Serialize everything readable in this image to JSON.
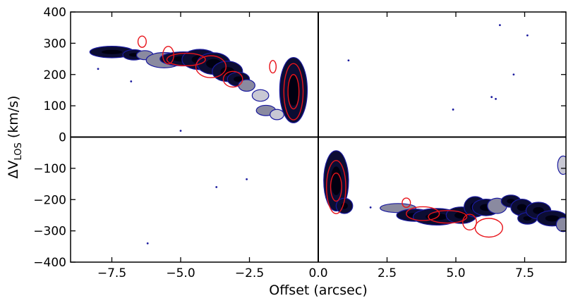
{
  "chart_data": {
    "type": "contour",
    "title": "",
    "xlabel": "Offset (arcsec)",
    "ylabel_main": "ΔV",
    "ylabel_sub": "LOS",
    "ylabel_unit": " (km/s)",
    "xlim": [
      -9.0,
      9.0
    ],
    "ylim": [
      -400,
      400
    ],
    "xticks": [
      -7.5,
      -5.0,
      -2.5,
      0.0,
      2.5,
      5.0,
      7.5
    ],
    "xtick_labels": [
      "−7.5",
      "−5.0",
      "−2.5",
      "0.0",
      "2.5",
      "5.0",
      "7.5"
    ],
    "yticks": [
      -400,
      -300,
      -200,
      -100,
      0,
      100,
      200,
      300,
      400
    ],
    "ytick_labels": [
      "−400",
      "−300",
      "−200",
      "−100",
      "0",
      "100",
      "200",
      "300",
      "400"
    ],
    "reference_lines": {
      "x": 0,
      "y": 0
    },
    "grid": false,
    "legend": "none",
    "colors": {
      "fill_dark": "#0c0d33",
      "fill_mid": "#8a8aa0",
      "fill_light": "#c8c8d4",
      "blue_contour": "#1a1a9e",
      "red_contour": "#e8141b"
    },
    "emission_blobs": [
      {
        "cx": -7.5,
        "cy": 272,
        "rx": 0.75,
        "ry": 14,
        "rot": 0,
        "shade": "dark"
      },
      {
        "cx": -6.7,
        "cy": 263,
        "rx": 0.35,
        "ry": 12,
        "rot": 0,
        "shade": "dark"
      },
      {
        "cx": -6.3,
        "cy": 262,
        "rx": 0.25,
        "ry": 10,
        "rot": 0,
        "shade": "mid"
      },
      {
        "cx": -5.6,
        "cy": 246,
        "rx": 0.6,
        "ry": 20,
        "rot": 0,
        "shade": "mid"
      },
      {
        "cx": -4.9,
        "cy": 250,
        "rx": 0.8,
        "ry": 18,
        "rot": 0,
        "shade": "dark"
      },
      {
        "cx": -4.3,
        "cy": 248,
        "rx": 0.6,
        "ry": 28,
        "rot": 0,
        "shade": "dark"
      },
      {
        "cx": -3.8,
        "cy": 235,
        "rx": 0.55,
        "ry": 30,
        "rot": 0,
        "shade": "dark"
      },
      {
        "cx": -3.3,
        "cy": 210,
        "rx": 0.5,
        "ry": 28,
        "rot": 0,
        "shade": "dark"
      },
      {
        "cx": -2.9,
        "cy": 185,
        "rx": 0.35,
        "ry": 18,
        "rot": 0,
        "shade": "dark"
      },
      {
        "cx": -2.6,
        "cy": 165,
        "rx": 0.25,
        "ry": 14,
        "rot": 0,
        "shade": "mid"
      },
      {
        "cx": -2.1,
        "cy": 133,
        "rx": 0.25,
        "ry": 14,
        "rot": 0,
        "shade": "light"
      },
      {
        "cx": -1.9,
        "cy": 85,
        "rx": 0.3,
        "ry": 12,
        "rot": 0,
        "shade": "mid"
      },
      {
        "cx": -1.5,
        "cy": 72,
        "rx": 0.2,
        "ry": 12,
        "rot": 0,
        "shade": "light"
      },
      {
        "cx": -0.9,
        "cy": 150,
        "rx": 0.45,
        "ry": 100,
        "rot": 0,
        "shade": "dark"
      },
      {
        "cx": 0.65,
        "cy": -140,
        "rx": 0.4,
        "ry": 92,
        "rot": 0,
        "shade": "dark"
      },
      {
        "cx": 0.95,
        "cy": -220,
        "rx": 0.25,
        "ry": 20,
        "rot": 0,
        "shade": "dark"
      },
      {
        "cx": 2.9,
        "cy": -227,
        "rx": 0.6,
        "ry": 10,
        "rot": 0,
        "shade": "mid"
      },
      {
        "cx": 3.5,
        "cy": -250,
        "rx": 0.6,
        "ry": 15,
        "rot": 0,
        "shade": "dark"
      },
      {
        "cx": 4.3,
        "cy": -255,
        "rx": 0.8,
        "ry": 22,
        "rot": 0,
        "shade": "dark"
      },
      {
        "cx": 5.2,
        "cy": -250,
        "rx": 0.5,
        "ry": 22,
        "rot": 0,
        "shade": "dark"
      },
      {
        "cx": 5.7,
        "cy": -223,
        "rx": 0.35,
        "ry": 28,
        "rot": 0,
        "shade": "dark"
      },
      {
        "cx": 6.1,
        "cy": -225,
        "rx": 0.45,
        "ry": 22,
        "rot": 0,
        "shade": "dark"
      },
      {
        "cx": 6.5,
        "cy": -220,
        "rx": 0.3,
        "ry": 20,
        "rot": 0,
        "shade": "mid"
      },
      {
        "cx": 7.0,
        "cy": -205,
        "rx": 0.3,
        "ry": 15,
        "rot": 0,
        "shade": "dark"
      },
      {
        "cx": 7.4,
        "cy": -225,
        "rx": 0.35,
        "ry": 22,
        "rot": 0,
        "shade": "dark"
      },
      {
        "cx": 7.6,
        "cy": -260,
        "rx": 0.3,
        "ry": 14,
        "rot": 0,
        "shade": "dark"
      },
      {
        "cx": 8.0,
        "cy": -235,
        "rx": 0.4,
        "ry": 22,
        "rot": 0,
        "shade": "dark"
      },
      {
        "cx": 8.5,
        "cy": -260,
        "rx": 0.5,
        "ry": 20,
        "rot": 0,
        "shade": "dark"
      },
      {
        "cx": 8.9,
        "cy": -280,
        "rx": 0.2,
        "ry": 18,
        "rot": 0,
        "shade": "mid"
      },
      {
        "cx": 8.9,
        "cy": -90,
        "rx": 0.15,
        "ry": 25,
        "rot": 0,
        "shade": "light"
      }
    ],
    "blue_specks": [
      {
        "x": -8.0,
        "y": 218
      },
      {
        "x": -6.8,
        "y": 178
      },
      {
        "x": -5.0,
        "y": 20
      },
      {
        "x": -6.2,
        "y": -340
      },
      {
        "x": -3.7,
        "y": -160
      },
      {
        "x": 1.1,
        "y": 245
      },
      {
        "x": 4.9,
        "y": 88
      },
      {
        "x": 6.6,
        "y": 358
      },
      {
        "x": 7.6,
        "y": 325
      },
      {
        "x": 7.1,
        "y": 200
      },
      {
        "x": 6.3,
        "y": 128
      },
      {
        "x": 6.45,
        "y": 122
      },
      {
        "x": -2.6,
        "y": -135
      },
      {
        "x": 1.9,
        "y": -225
      }
    ],
    "red_contours": [
      {
        "cx": -6.4,
        "cy": 305,
        "rx": 0.15,
        "ry": 18
      },
      {
        "cx": -5.45,
        "cy": 262,
        "rx": 0.2,
        "ry": 28
      },
      {
        "cx": -4.8,
        "cy": 248,
        "rx": 0.7,
        "ry": 20
      },
      {
        "cx": -3.9,
        "cy": 225,
        "rx": 0.55,
        "ry": 35
      },
      {
        "cx": -3.1,
        "cy": 185,
        "rx": 0.35,
        "ry": 25
      },
      {
        "cx": -1.65,
        "cy": 225,
        "rx": 0.12,
        "ry": 20
      },
      {
        "cx": -0.9,
        "cy": 145,
        "rx": 0.35,
        "ry": 90
      },
      {
        "cx": -0.9,
        "cy": 145,
        "rx": 0.2,
        "ry": 55
      },
      {
        "cx": 0.65,
        "cy": -160,
        "rx": 0.35,
        "ry": 85
      },
      {
        "cx": 0.65,
        "cy": -160,
        "rx": 0.2,
        "ry": 45
      },
      {
        "cx": 3.2,
        "cy": -210,
        "rx": 0.15,
        "ry": 15
      },
      {
        "cx": 3.8,
        "cy": -245,
        "rx": 0.6,
        "ry": 22
      },
      {
        "cx": 4.7,
        "cy": -255,
        "rx": 0.7,
        "ry": 20
      },
      {
        "cx": 5.5,
        "cy": -272,
        "rx": 0.25,
        "ry": 25
      },
      {
        "cx": 6.2,
        "cy": -290,
        "rx": 0.5,
        "ry": 30
      }
    ]
  }
}
